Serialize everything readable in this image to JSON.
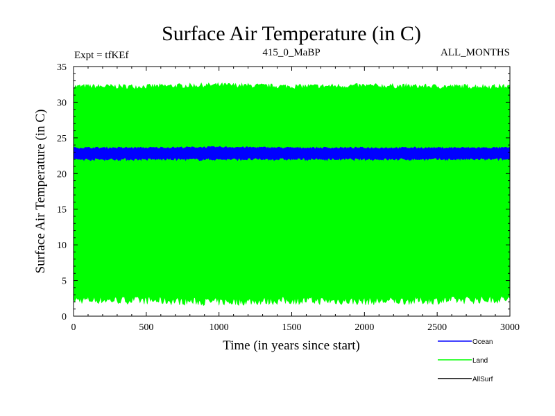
{
  "chart_data": {
    "type": "area",
    "title": "Surface Air Temperature (in C)",
    "subtitle_left": "Expt = tfKEf",
    "subtitle_center": "415_0_MaBP",
    "subtitle_right": "ALL_MONTHS",
    "xlabel": "Time (in years since start)",
    "ylabel": "Surface Air Temperature (in C)",
    "xlim": [
      0,
      3000
    ],
    "ylim": [
      0,
      35
    ],
    "xticks": [
      0,
      500,
      1000,
      1500,
      2000,
      2500,
      3000
    ],
    "yticks": [
      0,
      5,
      10,
      15,
      20,
      25,
      30,
      35
    ],
    "grid": false,
    "legend_position": "bottom-right",
    "series": [
      {
        "name": "Land",
        "color": "#00ff00",
        "x": [
          0,
          500,
          1000,
          1500,
          2000,
          2500,
          3000
        ],
        "min": [
          2.3,
          2.2,
          2.0,
          2.2,
          2.1,
          2.2,
          2.4
        ],
        "max": [
          32.2,
          32.2,
          32.4,
          32.2,
          32.3,
          32.2,
          32.2
        ]
      },
      {
        "name": "Ocean",
        "color": "#0000ff",
        "x": [
          0,
          500,
          1000,
          1500,
          2000,
          2500,
          3000
        ],
        "min": [
          22.0,
          22.0,
          22.0,
          22.0,
          22.0,
          22.0,
          22.0
        ],
        "max": [
          23.6,
          23.6,
          23.7,
          23.6,
          23.6,
          23.6,
          23.6
        ]
      },
      {
        "name": "AllSurf",
        "color": "#000000",
        "x": [],
        "values": []
      }
    ]
  }
}
